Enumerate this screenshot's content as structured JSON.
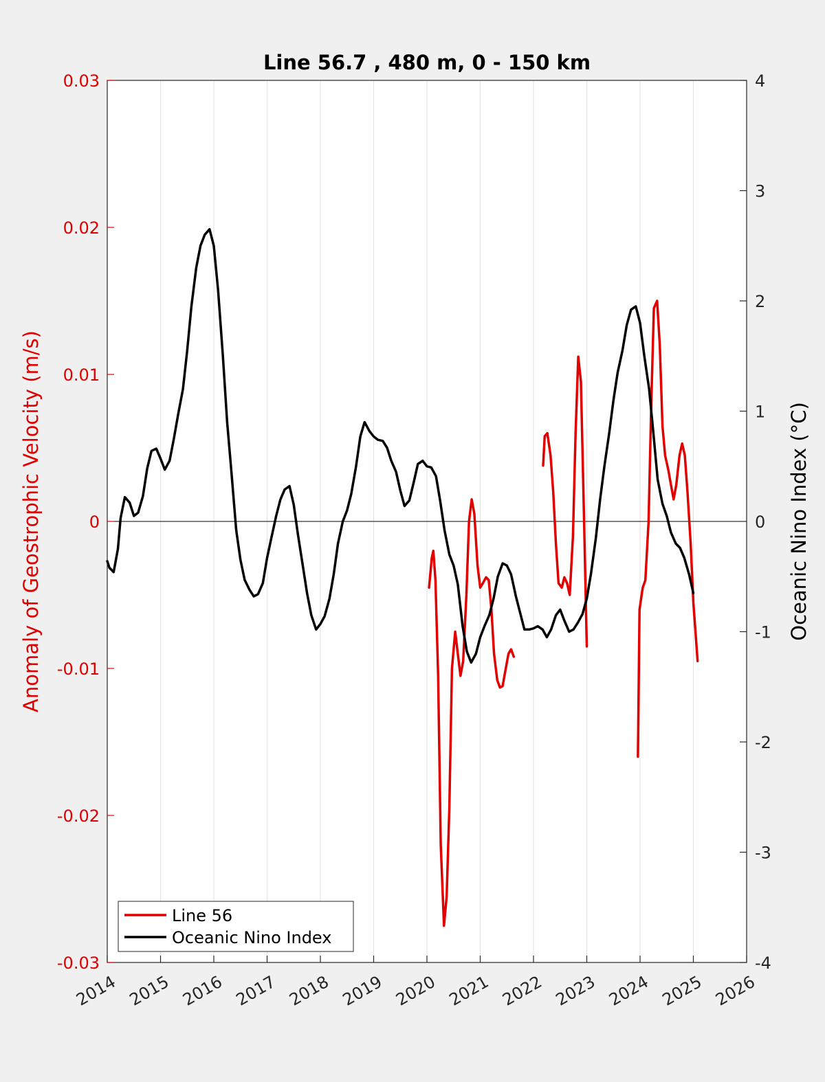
{
  "chart_data": {
    "type": "line",
    "title": "Line 56.7 , 480 m, 0 - 150 km",
    "ylabel_left": "Anomaly of Geostrophic Velocity (m/s)",
    "ylabel_right": "Oceanic Nino Index (°C)",
    "xlabel": "",
    "xlim": [
      2014,
      2026
    ],
    "ylim_left": [
      -0.03,
      0.03
    ],
    "ylim_right": [
      -4,
      4
    ],
    "x_ticks": [
      "2014",
      "2015",
      "2016",
      "2017",
      "2018",
      "2019",
      "2020",
      "2021",
      "2022",
      "2023",
      "2024",
      "2025",
      "2026"
    ],
    "y_left_ticks": [
      "-0.03",
      "-0.02",
      "-0.01",
      "0",
      "0.01",
      "0.02",
      "0.03"
    ],
    "y_right_ticks": [
      "-4",
      "-3",
      "-2",
      "-1",
      "0",
      "1",
      "2",
      "3",
      "4"
    ],
    "grid": "vertical",
    "zero_line": true,
    "legend_position": "bottom-left",
    "left_axis_color": "#e00000",
    "series": [
      {
        "name": "Line 56",
        "color": "#e00000",
        "axis": "left",
        "segments": [
          [
            [
              2020.04,
              -0.0045
            ],
            [
              2020.09,
              -0.0025
            ],
            [
              2020.12,
              -0.002
            ],
            [
              2020.16,
              -0.004
            ],
            [
              2020.21,
              -0.0105
            ],
            [
              2020.26,
              -0.022
            ],
            [
              2020.32,
              -0.0275
            ],
            [
              2020.37,
              -0.0255
            ],
            [
              2020.42,
              -0.0195
            ],
            [
              2020.47,
              -0.01
            ],
            [
              2020.53,
              -0.0075
            ],
            [
              2020.58,
              -0.009
            ],
            [
              2020.63,
              -0.0105
            ],
            [
              2020.68,
              -0.0095
            ],
            [
              2020.74,
              -0.005
            ],
            [
              2020.79,
              0.0
            ],
            [
              2020.84,
              0.0015
            ],
            [
              2020.89,
              0.0005
            ],
            [
              2020.95,
              -0.003
            ],
            [
              2021.0,
              -0.0045
            ],
            [
              2021.05,
              -0.0042
            ],
            [
              2021.11,
              -0.0038
            ],
            [
              2021.16,
              -0.004
            ],
            [
              2021.21,
              -0.006
            ],
            [
              2021.26,
              -0.009
            ],
            [
              2021.32,
              -0.0108
            ],
            [
              2021.37,
              -0.0113
            ],
            [
              2021.42,
              -0.0112
            ],
            [
              2021.47,
              -0.0102
            ],
            [
              2021.53,
              -0.009
            ],
            [
              2021.58,
              -0.0087
            ],
            [
              2021.63,
              -0.0092
            ]
          ],
          [
            [
              2022.18,
              0.0038
            ],
            [
              2022.21,
              0.0058
            ],
            [
              2022.26,
              0.006
            ],
            [
              2022.32,
              0.0045
            ],
            [
              2022.37,
              0.002
            ],
            [
              2022.42,
              -0.0015
            ],
            [
              2022.47,
              -0.0042
            ],
            [
              2022.53,
              -0.0045
            ],
            [
              2022.58,
              -0.0038
            ],
            [
              2022.63,
              -0.0042
            ],
            [
              2022.68,
              -0.005
            ],
            [
              2022.74,
              -0.001
            ],
            [
              2022.79,
              0.006
            ],
            [
              2022.84,
              0.0112
            ],
            [
              2022.89,
              0.0095
            ],
            [
              2022.95,
              0.0
            ],
            [
              2023.0,
              -0.0085
            ]
          ],
          [
            [
              2023.96,
              -0.016
            ],
            [
              2023.99,
              -0.006
            ],
            [
              2024.05,
              -0.0045
            ],
            [
              2024.1,
              -0.004
            ],
            [
              2024.16,
              0.0
            ],
            [
              2024.21,
              0.008
            ],
            [
              2024.26,
              0.0145
            ],
            [
              2024.32,
              0.015
            ],
            [
              2024.37,
              0.012
            ],
            [
              2024.42,
              0.0065
            ],
            [
              2024.47,
              0.0045
            ],
            [
              2024.53,
              0.0035
            ],
            [
              2024.58,
              0.0025
            ],
            [
              2024.63,
              0.0015
            ],
            [
              2024.68,
              0.0025
            ],
            [
              2024.74,
              0.0045
            ],
            [
              2024.79,
              0.0053
            ],
            [
              2024.84,
              0.0045
            ],
            [
              2024.89,
              0.002
            ],
            [
              2024.95,
              -0.0015
            ],
            [
              2025.0,
              -0.0055
            ],
            [
              2025.08,
              -0.0095
            ]
          ]
        ]
      },
      {
        "name": "Oceanic Nino Index",
        "color": "#000000",
        "axis": "right",
        "segments": [
          [
            [
              2014.0,
              -0.36
            ],
            [
              2014.04,
              -0.42
            ],
            [
              2014.12,
              -0.46
            ],
            [
              2014.2,
              -0.25
            ],
            [
              2014.25,
              0.03
            ],
            [
              2014.33,
              0.22
            ],
            [
              2014.42,
              0.17
            ],
            [
              2014.5,
              0.05
            ],
            [
              2014.58,
              0.08
            ],
            [
              2014.67,
              0.23
            ],
            [
              2014.75,
              0.48
            ],
            [
              2014.83,
              0.64
            ],
            [
              2014.92,
              0.66
            ],
            [
              2015.0,
              0.57
            ],
            [
              2015.08,
              0.47
            ],
            [
              2015.17,
              0.55
            ],
            [
              2015.25,
              0.75
            ],
            [
              2015.33,
              0.97
            ],
            [
              2015.42,
              1.2
            ],
            [
              2015.5,
              1.55
            ],
            [
              2015.58,
              1.95
            ],
            [
              2015.67,
              2.3
            ],
            [
              2015.75,
              2.5
            ],
            [
              2015.83,
              2.6
            ],
            [
              2015.92,
              2.65
            ],
            [
              2016.0,
              2.5
            ],
            [
              2016.08,
              2.1
            ],
            [
              2016.17,
              1.5
            ],
            [
              2016.25,
              0.9
            ],
            [
              2016.33,
              0.45
            ],
            [
              2016.42,
              -0.08
            ],
            [
              2016.5,
              -0.35
            ],
            [
              2016.58,
              -0.53
            ],
            [
              2016.67,
              -0.62
            ],
            [
              2016.75,
              -0.68
            ],
            [
              2016.83,
              -0.66
            ],
            [
              2016.92,
              -0.56
            ],
            [
              2017.0,
              -0.33
            ],
            [
              2017.08,
              -0.15
            ],
            [
              2017.17,
              0.05
            ],
            [
              2017.25,
              0.2
            ],
            [
              2017.33,
              0.29
            ],
            [
              2017.42,
              0.32
            ],
            [
              2017.5,
              0.15
            ],
            [
              2017.58,
              -0.12
            ],
            [
              2017.67,
              -0.4
            ],
            [
              2017.75,
              -0.65
            ],
            [
              2017.83,
              -0.85
            ],
            [
              2017.92,
              -0.98
            ],
            [
              2018.0,
              -0.93
            ],
            [
              2018.08,
              -0.86
            ],
            [
              2018.17,
              -0.7
            ],
            [
              2018.25,
              -0.48
            ],
            [
              2018.33,
              -0.2
            ],
            [
              2018.42,
              0.0
            ],
            [
              2018.5,
              0.1
            ],
            [
              2018.58,
              0.25
            ],
            [
              2018.67,
              0.5
            ],
            [
              2018.75,
              0.77
            ],
            [
              2018.83,
              0.9
            ],
            [
              2018.92,
              0.82
            ],
            [
              2019.0,
              0.77
            ],
            [
              2019.08,
              0.74
            ],
            [
              2019.17,
              0.73
            ],
            [
              2019.25,
              0.67
            ],
            [
              2019.33,
              0.55
            ],
            [
              2019.42,
              0.45
            ],
            [
              2019.5,
              0.28
            ],
            [
              2019.58,
              0.14
            ],
            [
              2019.67,
              0.19
            ],
            [
              2019.75,
              0.35
            ],
            [
              2019.83,
              0.52
            ],
            [
              2019.92,
              0.55
            ],
            [
              2020.0,
              0.5
            ],
            [
              2020.08,
              0.49
            ],
            [
              2020.17,
              0.41
            ],
            [
              2020.25,
              0.18
            ],
            [
              2020.33,
              -0.08
            ],
            [
              2020.42,
              -0.3
            ],
            [
              2020.5,
              -0.4
            ],
            [
              2020.58,
              -0.57
            ],
            [
              2020.67,
              -0.95
            ],
            [
              2020.75,
              -1.18
            ],
            [
              2020.83,
              -1.28
            ],
            [
              2020.92,
              -1.2
            ],
            [
              2021.0,
              -1.05
            ],
            [
              2021.08,
              -0.95
            ],
            [
              2021.17,
              -0.85
            ],
            [
              2021.25,
              -0.7
            ],
            [
              2021.33,
              -0.5
            ],
            [
              2021.42,
              -0.38
            ],
            [
              2021.5,
              -0.4
            ],
            [
              2021.58,
              -0.48
            ],
            [
              2021.67,
              -0.68
            ],
            [
              2021.75,
              -0.83
            ],
            [
              2021.83,
              -0.98
            ],
            [
              2021.92,
              -0.98
            ],
            [
              2022.0,
              -0.97
            ],
            [
              2022.08,
              -0.95
            ],
            [
              2022.17,
              -0.98
            ],
            [
              2022.25,
              -1.05
            ],
            [
              2022.33,
              -0.98
            ],
            [
              2022.42,
              -0.85
            ],
            [
              2022.5,
              -0.8
            ],
            [
              2022.58,
              -0.9
            ],
            [
              2022.67,
              -1.0
            ],
            [
              2022.75,
              -0.98
            ],
            [
              2022.83,
              -0.92
            ],
            [
              2022.92,
              -0.84
            ],
            [
              2023.0,
              -0.7
            ],
            [
              2023.08,
              -0.47
            ],
            [
              2023.17,
              -0.15
            ],
            [
              2023.25,
              0.2
            ],
            [
              2023.33,
              0.5
            ],
            [
              2023.42,
              0.8
            ],
            [
              2023.5,
              1.1
            ],
            [
              2023.58,
              1.35
            ],
            [
              2023.67,
              1.55
            ],
            [
              2023.75,
              1.78
            ],
            [
              2023.83,
              1.92
            ],
            [
              2023.92,
              1.95
            ],
            [
              2024.0,
              1.8
            ],
            [
              2024.08,
              1.5
            ],
            [
              2024.17,
              1.2
            ],
            [
              2024.25,
              0.8
            ],
            [
              2024.33,
              0.38
            ],
            [
              2024.42,
              0.16
            ],
            [
              2024.5,
              0.05
            ],
            [
              2024.58,
              -0.1
            ],
            [
              2024.67,
              -0.2
            ],
            [
              2024.75,
              -0.24
            ],
            [
              2024.83,
              -0.33
            ],
            [
              2024.92,
              -0.48
            ],
            [
              2025.0,
              -0.65
            ]
          ]
        ]
      }
    ]
  }
}
